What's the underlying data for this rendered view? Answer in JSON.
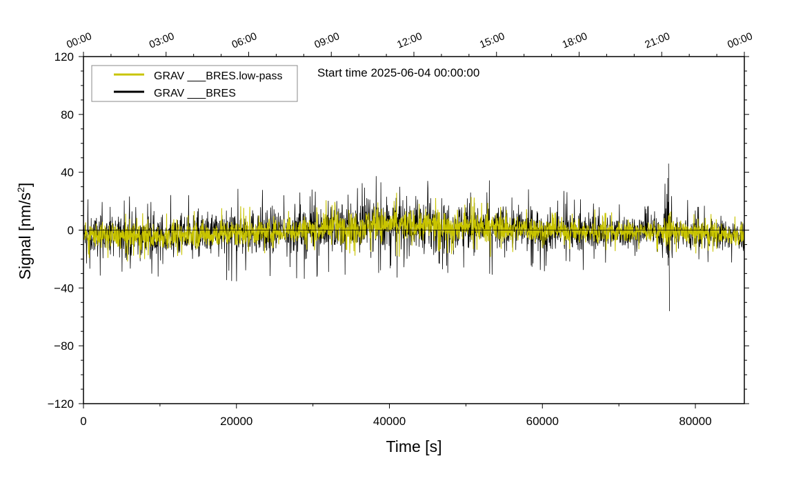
{
  "chart_data": {
    "type": "line",
    "title": "Start time 2025-06-04 00:00:00",
    "xlabel": "Time [s]",
    "ylabel": "Signal [nm/s",
    "ylabel_sup": "2",
    "ylabel_end": "]",
    "xlim": [
      0,
      86400
    ],
    "ylim": [
      -120,
      120
    ],
    "x_ticks": [
      0,
      20000,
      40000,
      60000,
      80000
    ],
    "x_tick_labels": [
      "0",
      "20000",
      "40000",
      "60000",
      "80000"
    ],
    "y_ticks": [
      -120,
      -80,
      -40,
      0,
      40,
      80,
      120
    ],
    "y_tick_labels": [
      "−120",
      "−80",
      "−40",
      "0",
      "40",
      "80",
      "120"
    ],
    "top_axis_labels": [
      "00:00",
      "03:00",
      "06:00",
      "09:00",
      "12:00",
      "15:00",
      "18:00",
      "21:00",
      "00:00"
    ],
    "top_axis_ticks_s": [
      0,
      10800,
      21600,
      32400,
      43200,
      54000,
      64800,
      75600,
      86400
    ],
    "legend_position": "top-left",
    "series": [
      {
        "name": "GRAV ___BRES.low-pass",
        "color": "#c8c400",
        "envelope_x": [
          0,
          4000,
          8000,
          12000,
          16000,
          20000,
          24000,
          28000,
          32000,
          36000,
          40000,
          44000,
          48000,
          52000,
          56000,
          60000,
          64000,
          68000,
          72000,
          75800,
          76400,
          77200,
          80000,
          84000,
          86400
        ],
        "envelope_center": [
          -3,
          -4,
          -5,
          -4,
          -3,
          -2,
          -1,
          0,
          1,
          3,
          4,
          3,
          3,
          2,
          1,
          0,
          -1,
          -1,
          -1,
          -1,
          0,
          -1,
          -2,
          -3,
          -4
        ],
        "envelope_amp": [
          10,
          11,
          11,
          11,
          12,
          12,
          12,
          12,
          13,
          14,
          14,
          14,
          13,
          13,
          12,
          11,
          10,
          10,
          9,
          9,
          20,
          10,
          9,
          9,
          9
        ]
      },
      {
        "name": "GRAV ___BRES",
        "color": "#000000",
        "envelope_x": [
          0,
          4000,
          8000,
          12000,
          16000,
          20000,
          24000,
          28000,
          32000,
          36000,
          40000,
          44000,
          48000,
          52000,
          56000,
          60000,
          64000,
          68000,
          72000,
          75800,
          76400,
          77200,
          80000,
          84000,
          86400
        ],
        "envelope_center": [
          -3,
          -4,
          -5,
          -4,
          -3,
          -2,
          -1,
          0,
          1,
          3,
          4,
          3,
          3,
          2,
          1,
          0,
          -1,
          -1,
          -1,
          -1,
          0,
          -1,
          -2,
          -3,
          -4
        ],
        "envelope_amp": [
          17,
          18,
          19,
          19,
          20,
          21,
          20,
          21,
          22,
          23,
          24,
          23,
          22,
          21,
          20,
          19,
          17,
          16,
          15,
          15,
          45,
          16,
          14,
          14,
          14
        ],
        "events": [
          {
            "x": 76500,
            "y_max": 46,
            "y_min": -56
          }
        ]
      }
    ]
  }
}
